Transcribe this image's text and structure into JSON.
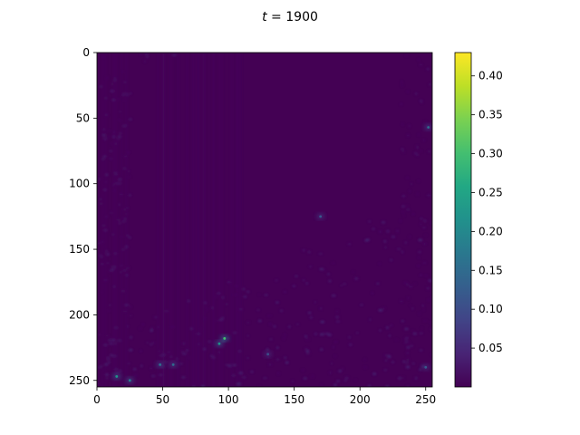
{
  "chart_data": {
    "type": "heatmap",
    "title_var": "t",
    "title_eq": " = ",
    "title_value": "1900",
    "colormap": "viridis",
    "x_ticks": [
      0,
      50,
      100,
      150,
      200,
      250
    ],
    "y_ticks": [
      0,
      50,
      100,
      150,
      200,
      250
    ],
    "xlim": [
      0,
      255
    ],
    "ylim": [
      255,
      0
    ],
    "colorbar": {
      "range": [
        0.0,
        0.43
      ],
      "ticks": [
        "0.05",
        "0.10",
        "0.15",
        "0.20",
        "0.25",
        "0.30",
        "0.35",
        "0.40"
      ]
    },
    "hotspots": [
      {
        "x": 97,
        "y": 218,
        "value": 0.3
      },
      {
        "x": 93,
        "y": 222,
        "value": 0.22
      },
      {
        "x": 15,
        "y": 247,
        "value": 0.22
      },
      {
        "x": 25,
        "y": 250,
        "value": 0.18
      },
      {
        "x": 48,
        "y": 238,
        "value": 0.16
      },
      {
        "x": 58,
        "y": 238,
        "value": 0.15
      },
      {
        "x": 252,
        "y": 57,
        "value": 0.15
      },
      {
        "x": 250,
        "y": 240,
        "value": 0.12
      },
      {
        "x": 170,
        "y": 125,
        "value": 0.12
      },
      {
        "x": 130,
        "y": 230,
        "value": 0.1
      }
    ]
  }
}
